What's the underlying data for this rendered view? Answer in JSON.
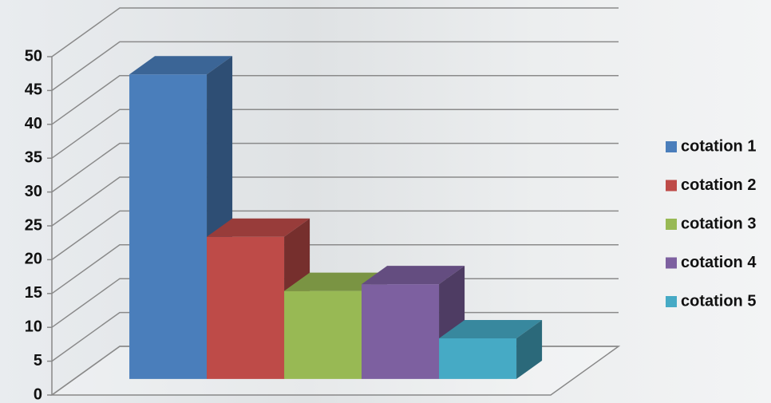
{
  "chart_data": {
    "type": "bar3d",
    "series": [
      {
        "name": "cotation 1",
        "color": "#4a7ebb",
        "values": [
          45
        ]
      },
      {
        "name": "cotation 2",
        "color": "#be4b48",
        "values": [
          21
        ]
      },
      {
        "name": "cotation 3",
        "color": "#98b954",
        "values": [
          13
        ]
      },
      {
        "name": "cotation 4",
        "color": "#7d60a0",
        "values": [
          14
        ]
      },
      {
        "name": "cotation 5",
        "color": "#46aac5",
        "values": [
          6
        ]
      }
    ],
    "ylim": [
      0,
      50
    ],
    "yticks": [
      0,
      5,
      10,
      15,
      20,
      25,
      30,
      35,
      40,
      45,
      50
    ],
    "grid": true,
    "legend": "right"
  }
}
